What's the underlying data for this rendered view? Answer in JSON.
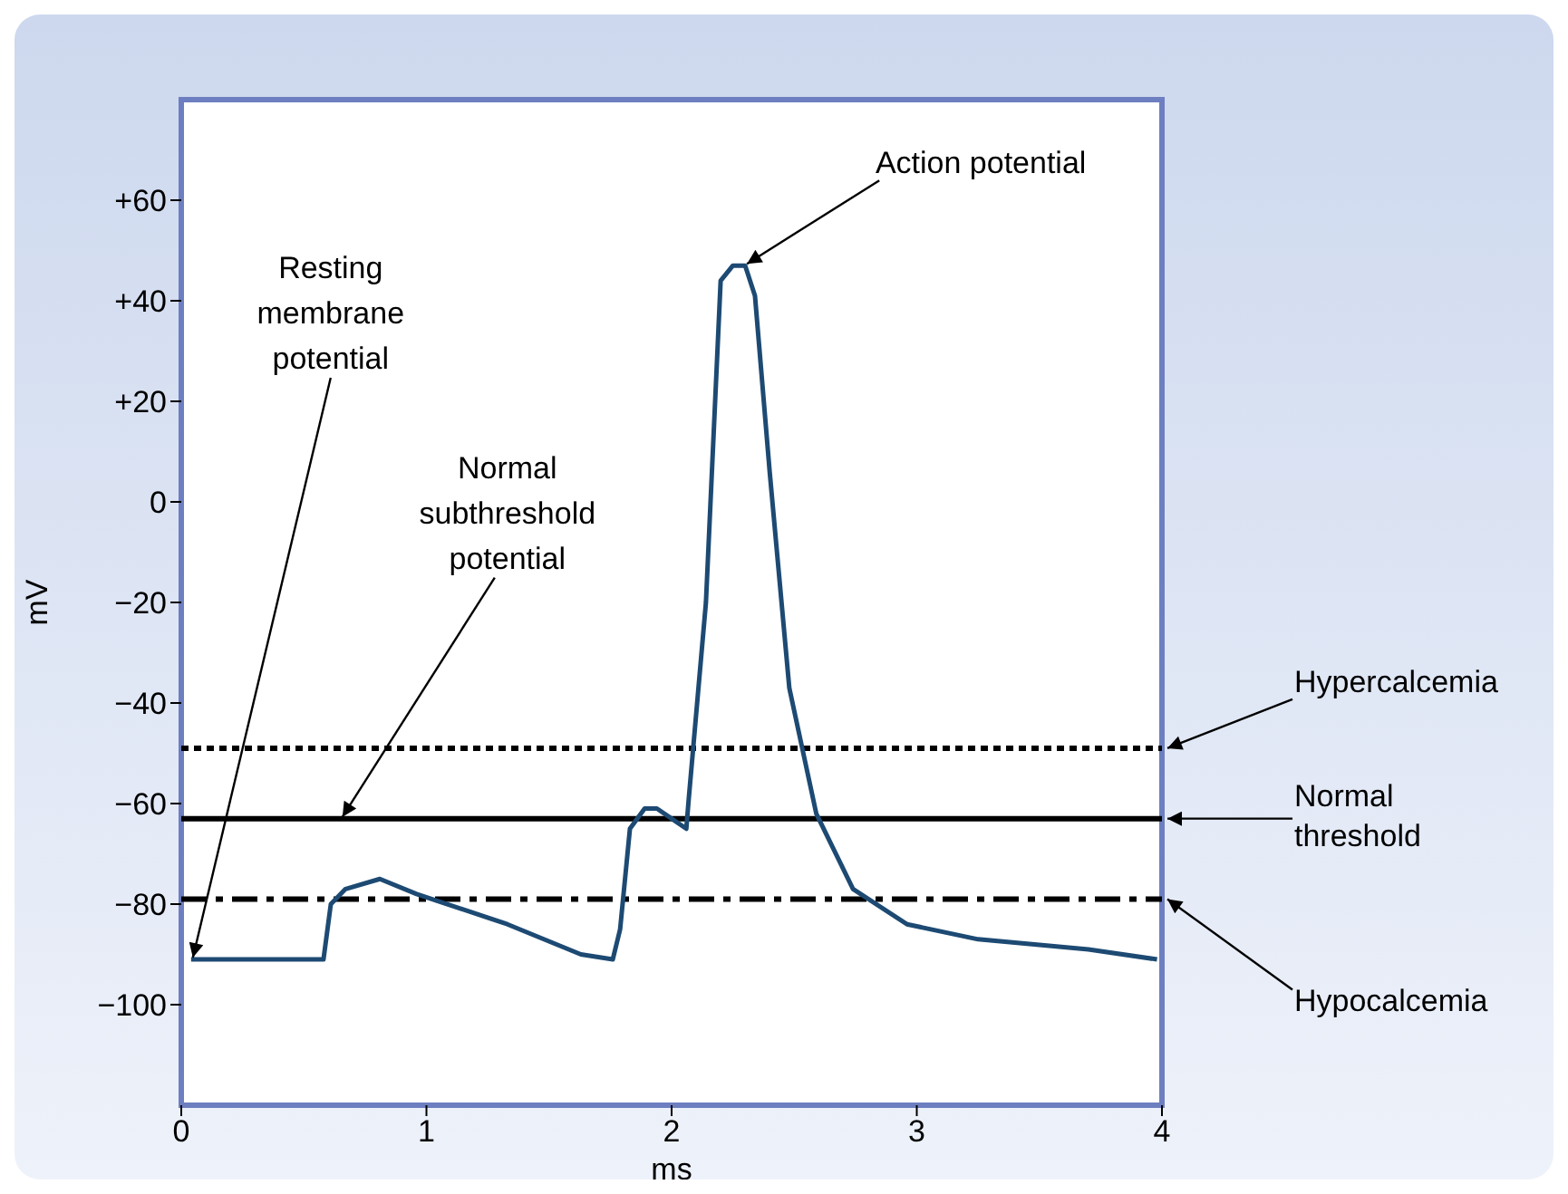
{
  "chart_data": {
    "type": "line",
    "xlabel": "ms",
    "ylabel": "mV",
    "x": [
      0.04,
      0.58,
      0.61,
      0.67,
      0.81,
      0.96,
      1.33,
      1.63,
      1.76,
      1.79,
      1.83,
      1.89,
      1.94,
      2.0,
      2.06,
      2.07,
      2.14,
      2.2,
      2.25,
      2.3,
      2.34,
      2.4,
      2.48,
      2.59,
      2.74,
      2.96,
      3.25,
      3.7,
      3.98
    ],
    "series": [
      {
        "color": "#1d4a73",
        "values": [
          -91,
          -91,
          -80,
          -77,
          -75,
          -78,
          -84,
          -90,
          -91,
          -85,
          -65,
          -61,
          -61,
          -63,
          -65,
          -59,
          -20,
          44,
          47,
          47,
          41,
          6,
          -37,
          -62,
          -77,
          -84,
          -87,
          -89,
          -91
        ]
      }
    ],
    "xlim": [
      0,
      4
    ],
    "xticks": [
      0,
      1,
      2,
      3,
      4
    ],
    "ylim": [
      -120,
      80
    ],
    "yticks": [
      {
        "value": 60,
        "label": "+60"
      },
      {
        "value": 40,
        "label": "+40"
      },
      {
        "value": 20,
        "label": "+20"
      },
      0,
      {
        "value": -20,
        "label": "−20"
      },
      {
        "value": -40,
        "label": "−40"
      },
      {
        "value": -60,
        "label": "−60"
      },
      {
        "value": -80,
        "label": "−80"
      },
      {
        "value": -100,
        "label": "−100"
      }
    ],
    "ref_lines": [
      {
        "axis": "y",
        "value": -49,
        "label": "Hypercalcemia",
        "color": "#000000",
        "line_style": "dotted"
      },
      {
        "axis": "y",
        "value": -63,
        "label": "Normal threshold",
        "color": "#000000",
        "line_style": "solid"
      },
      {
        "axis": "y",
        "value": -79,
        "label": "Hypocalcemia",
        "color": "#000000",
        "line_style": "dashdot"
      }
    ],
    "annotations": [
      {
        "text": "Action potential",
        "x": 2.3,
        "y": 47
      },
      {
        "text": "Resting membrane potential",
        "x": 0.04,
        "y": -91
      },
      {
        "text": "Normal subthreshold potential",
        "x": 0.65,
        "y": -63
      }
    ],
    "marker": "none",
    "line_style": "solid"
  }
}
